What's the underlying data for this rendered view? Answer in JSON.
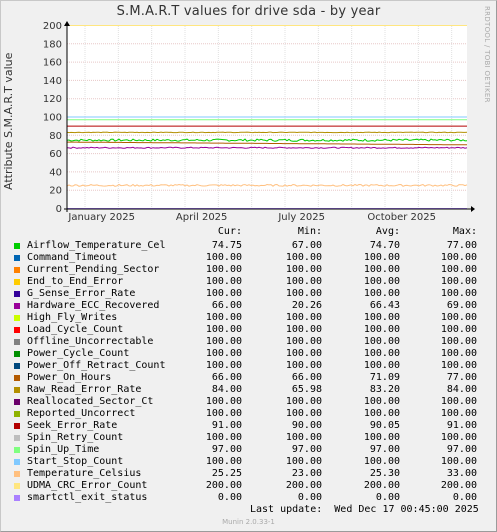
{
  "chart_data": {
    "type": "line",
    "title": "S.M.A.R.T values for drive sda - by year",
    "ylabel": "Attribute S.M.A.R.T value",
    "ylim": [
      0,
      200
    ],
    "yticks": [
      0,
      20,
      40,
      60,
      80,
      100,
      120,
      140,
      160,
      180,
      200
    ],
    "xticks": [
      "January 2025",
      "April 2025",
      "July 2025",
      "October 2025"
    ],
    "grid": true,
    "legend_headers": [
      "Cur:",
      "Min:",
      "Avg:",
      "Max:"
    ],
    "series": [
      {
        "name": "Airflow_Temperature_Cel",
        "color": "#00cc00",
        "cur": "74.75",
        "min": "67.00",
        "avg": "74.70",
        "max": "77.00",
        "level": 74.7,
        "noise": 1.2
      },
      {
        "name": "Command_Timeout",
        "color": "#0066b3",
        "cur": "100.00",
        "min": "100.00",
        "avg": "100.00",
        "max": "100.00",
        "level": 100,
        "noise": 0
      },
      {
        "name": "Current_Pending_Sector",
        "color": "#ff8000",
        "cur": "100.00",
        "min": "100.00",
        "avg": "100.00",
        "max": "100.00",
        "level": 100,
        "noise": 0
      },
      {
        "name": "End_to_End_Error",
        "color": "#ffcc00",
        "cur": "100.00",
        "min": "100.00",
        "avg": "100.00",
        "max": "100.00",
        "level": 100,
        "noise": 0
      },
      {
        "name": "G_Sense_Error_Rate",
        "color": "#330099",
        "cur": "100.00",
        "min": "100.00",
        "avg": "100.00",
        "max": "100.00",
        "level": 100,
        "noise": 0
      },
      {
        "name": "Hardware_ECC_Recovered",
        "color": "#990099",
        "cur": "66.00",
        "min": "20.26",
        "avg": "66.43",
        "max": "69.00",
        "level": 66.4,
        "noise": 0.6
      },
      {
        "name": "High_Fly_Writes",
        "color": "#ccff00",
        "cur": "100.00",
        "min": "100.00",
        "avg": "100.00",
        "max": "100.00",
        "level": 100,
        "noise": 0
      },
      {
        "name": "Load_Cycle_Count",
        "color": "#ff0000",
        "cur": "100.00",
        "min": "100.00",
        "avg": "100.00",
        "max": "100.00",
        "level": 100,
        "noise": 0
      },
      {
        "name": "Offline_Uncorrectable",
        "color": "#808080",
        "cur": "100.00",
        "min": "100.00",
        "avg": "100.00",
        "max": "100.00",
        "level": 100,
        "noise": 0
      },
      {
        "name": "Power_Cycle_Count",
        "color": "#008f00",
        "cur": "100.00",
        "min": "100.00",
        "avg": "100.00",
        "max": "100.00",
        "level": 100,
        "noise": 0
      },
      {
        "name": "Power_Off_Retract_Count",
        "color": "#00487d",
        "cur": "100.00",
        "min": "100.00",
        "avg": "100.00",
        "max": "100.00",
        "level": 100,
        "noise": 0
      },
      {
        "name": "Power_On_Hours",
        "color": "#b35a00",
        "cur": "66.00",
        "min": "66.00",
        "avg": "71.09",
        "max": "77.00",
        "level": 71.1,
        "noise": 0
      },
      {
        "name": "Raw_Read_Error_Rate",
        "color": "#b38f00",
        "cur": "84.00",
        "min": "65.98",
        "avg": "83.20",
        "max": "84.00",
        "level": 83.2,
        "noise": 0.3
      },
      {
        "name": "Reallocated_Sector_Ct",
        "color": "#6b006b",
        "cur": "100.00",
        "min": "100.00",
        "avg": "100.00",
        "max": "100.00",
        "level": 100,
        "noise": 0
      },
      {
        "name": "Reported_Uncorrect",
        "color": "#8fb300",
        "cur": "100.00",
        "min": "100.00",
        "avg": "100.00",
        "max": "100.00",
        "level": 100,
        "noise": 0
      },
      {
        "name": "Seek_Error_Rate",
        "color": "#b30000",
        "cur": "91.00",
        "min": "90.00",
        "avg": "90.05",
        "max": "91.00",
        "level": 90.05,
        "noise": 0
      },
      {
        "name": "Spin_Retry_Count",
        "color": "#bebebe",
        "cur": "100.00",
        "min": "100.00",
        "avg": "100.00",
        "max": "100.00",
        "level": 100,
        "noise": 0
      },
      {
        "name": "Spin_Up_Time",
        "color": "#80ff80",
        "cur": "97.00",
        "min": "97.00",
        "avg": "97.00",
        "max": "97.00",
        "level": 97,
        "noise": 0
      },
      {
        "name": "Start_Stop_Count",
        "color": "#80c9ff",
        "cur": "100.00",
        "min": "100.00",
        "avg": "100.00",
        "max": "100.00",
        "level": 100,
        "noise": 0
      },
      {
        "name": "Temperature_Celsius",
        "color": "#ffc080",
        "cur": "25.25",
        "min": "23.00",
        "avg": "25.30",
        "max": "33.00",
        "level": 25.3,
        "noise": 1.0
      },
      {
        "name": "UDMA_CRC_Error_Count",
        "color": "#ffe680",
        "cur": "200.00",
        "min": "200.00",
        "avg": "200.00",
        "max": "200.00",
        "level": 200,
        "noise": 0
      },
      {
        "name": "smartctl_exit_status",
        "color": "#aa80ff",
        "cur": "0.00",
        "min": "0.00",
        "avg": "0.00",
        "max": "0.00",
        "level": 0,
        "noise": 0
      }
    ]
  },
  "side_text": "RRDTOOL / TOBI OETIKER",
  "last_update": "Last update:  Wed Dec 17 00:45:00 2025",
  "footer": "Munin 2.0.33-1"
}
